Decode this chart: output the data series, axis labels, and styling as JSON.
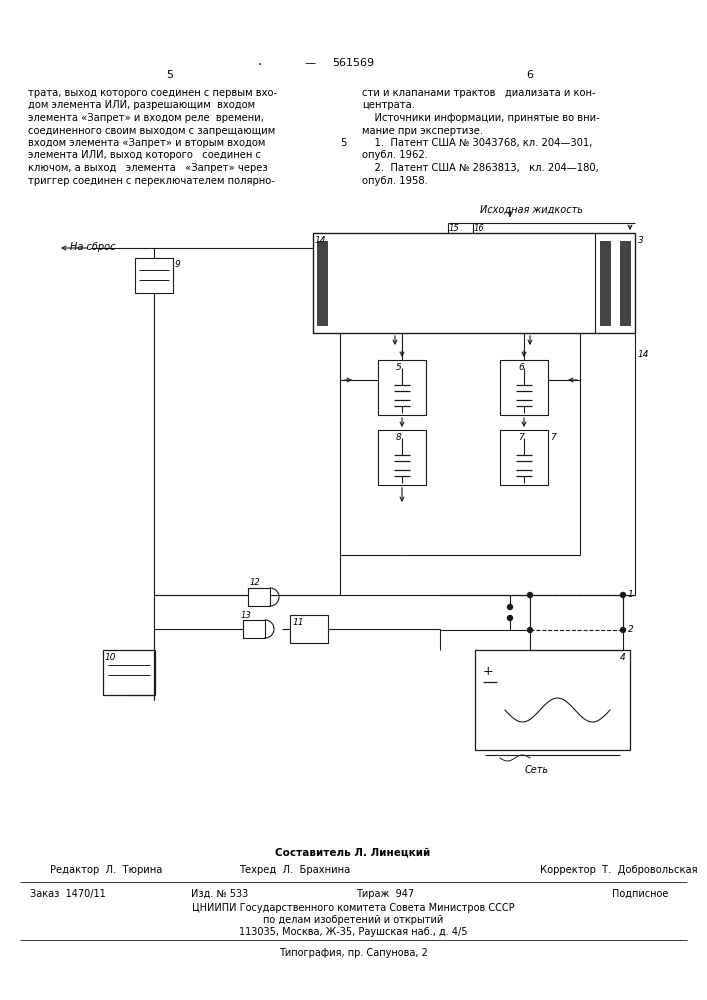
{
  "patent_number": "561569",
  "page_left": "5",
  "page_right": "6",
  "col_left_text": "трата, выход которого соединен с первым вхо-\nдом элемента ИЛИ, разрешающим  входом\nэлемента «Запрет» и входом реле  времени,\nсоединенного своим выходом с запрещающим\nвходом элемента «Запрет» и вторым входом  5\nэлемента ИЛИ, выход которого   соединен с\nключом, а выход   элемента   «Запрет» через\nтриггер соединен с переключателем полярно-",
  "col_right_text": "сти и клапанами трактов   диализата и кон-\nцентрата.\n    Источники информации, принятые во вни-\nмание при экспертизе.\n    1.  Патент США № 3043768, кл. 204—301,\nопубл. 1962.\n    2.  Патент США № 2863813,   кл. 204—180,\nопубл. 1958.",
  "label_isxodnaya": "Исходная жидкость",
  "label_na_sbros": "На сброс",
  "label_set": "Сеть",
  "footer_sostavitel": "Составитель Л. Линецкий",
  "footer_editor": "Редактор  Л.  Тюрина",
  "footer_texred": "Техред  Л.  Брахнина",
  "footer_correktor": "Корректор  Т.  Добровольская",
  "footer_zakaz": "Заказ  1470/11",
  "footer_izd": "Изд. № 533",
  "footer_tirazh": "Тираж  947",
  "footer_podpisnoe": "Подписное",
  "footer_cniip": "ЦНИИПИ Государственного комитета Совета Министров СССР",
  "footer_dela": "по делам изобретений и открытий",
  "footer_addr": "113035, Москва, Ж-35, Раушская наб., д. 4/5",
  "footer_tipografia": "Типография, пр. Сапунова, 2",
  "bg_color": "#ffffff",
  "text_color": "#000000",
  "line_color": "#1a1a1a"
}
